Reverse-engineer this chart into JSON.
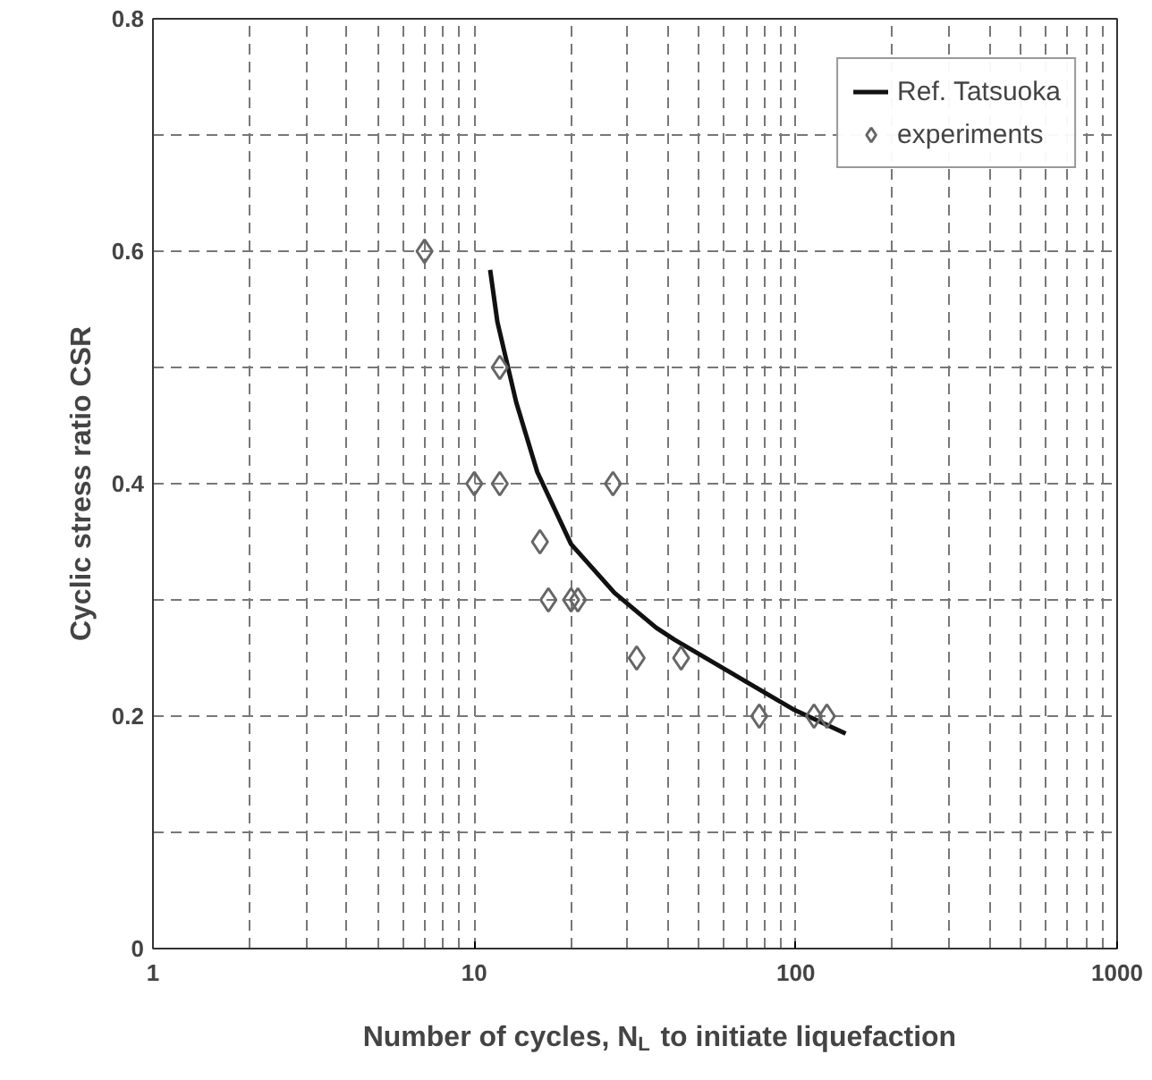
{
  "chart_data": {
    "type": "scatter",
    "xlabel": "Number of cycles, N$_{L}$ to initiate liquefaction",
    "ylabel": "Cyclic stress ratio CSR",
    "log": "x",
    "xlim": [
      1,
      1000
    ],
    "xticks": [
      1,
      10,
      100,
      1000
    ],
    "ylim": [
      0,
      0.8
    ],
    "yticks": [
      0,
      {
        "value": 0.1,
        "label": null
      },
      0.2,
      {
        "value": 0.3,
        "label": null
      },
      0.4,
      {
        "value": 0.5,
        "label": null
      },
      0.6,
      {
        "value": 0.7,
        "label": null
      },
      0.8
    ],
    "grid": true,
    "legend": "top right",
    "series": [
      {
        "name": "Ref. Tatsuoka",
        "type": "line",
        "color": "#111111",
        "marker": "none",
        "line_style": "solid",
        "x": [
          11.2,
          11.8,
          13.5,
          15.7,
          20,
          27.3,
          36.8,
          41.8,
          64,
          98,
          143
        ],
        "values": [
          0.584,
          0.539,
          0.47,
          0.41,
          0.348,
          0.306,
          0.276,
          0.266,
          0.236,
          0.206,
          0.185
        ]
      },
      {
        "name": "experiments",
        "type": "scatter",
        "color": "#666666",
        "marker": "diamond",
        "x": [
          7,
          12,
          10,
          12,
          27,
          16,
          17,
          20,
          21,
          32,
          44,
          77,
          114,
          125
        ],
        "values": [
          0.6,
          0.5,
          0.4,
          0.4,
          0.4,
          0.35,
          0.3,
          0.3,
          0.3,
          0.25,
          0.25,
          0.2,
          0.2,
          0.2
        ]
      }
    ]
  }
}
